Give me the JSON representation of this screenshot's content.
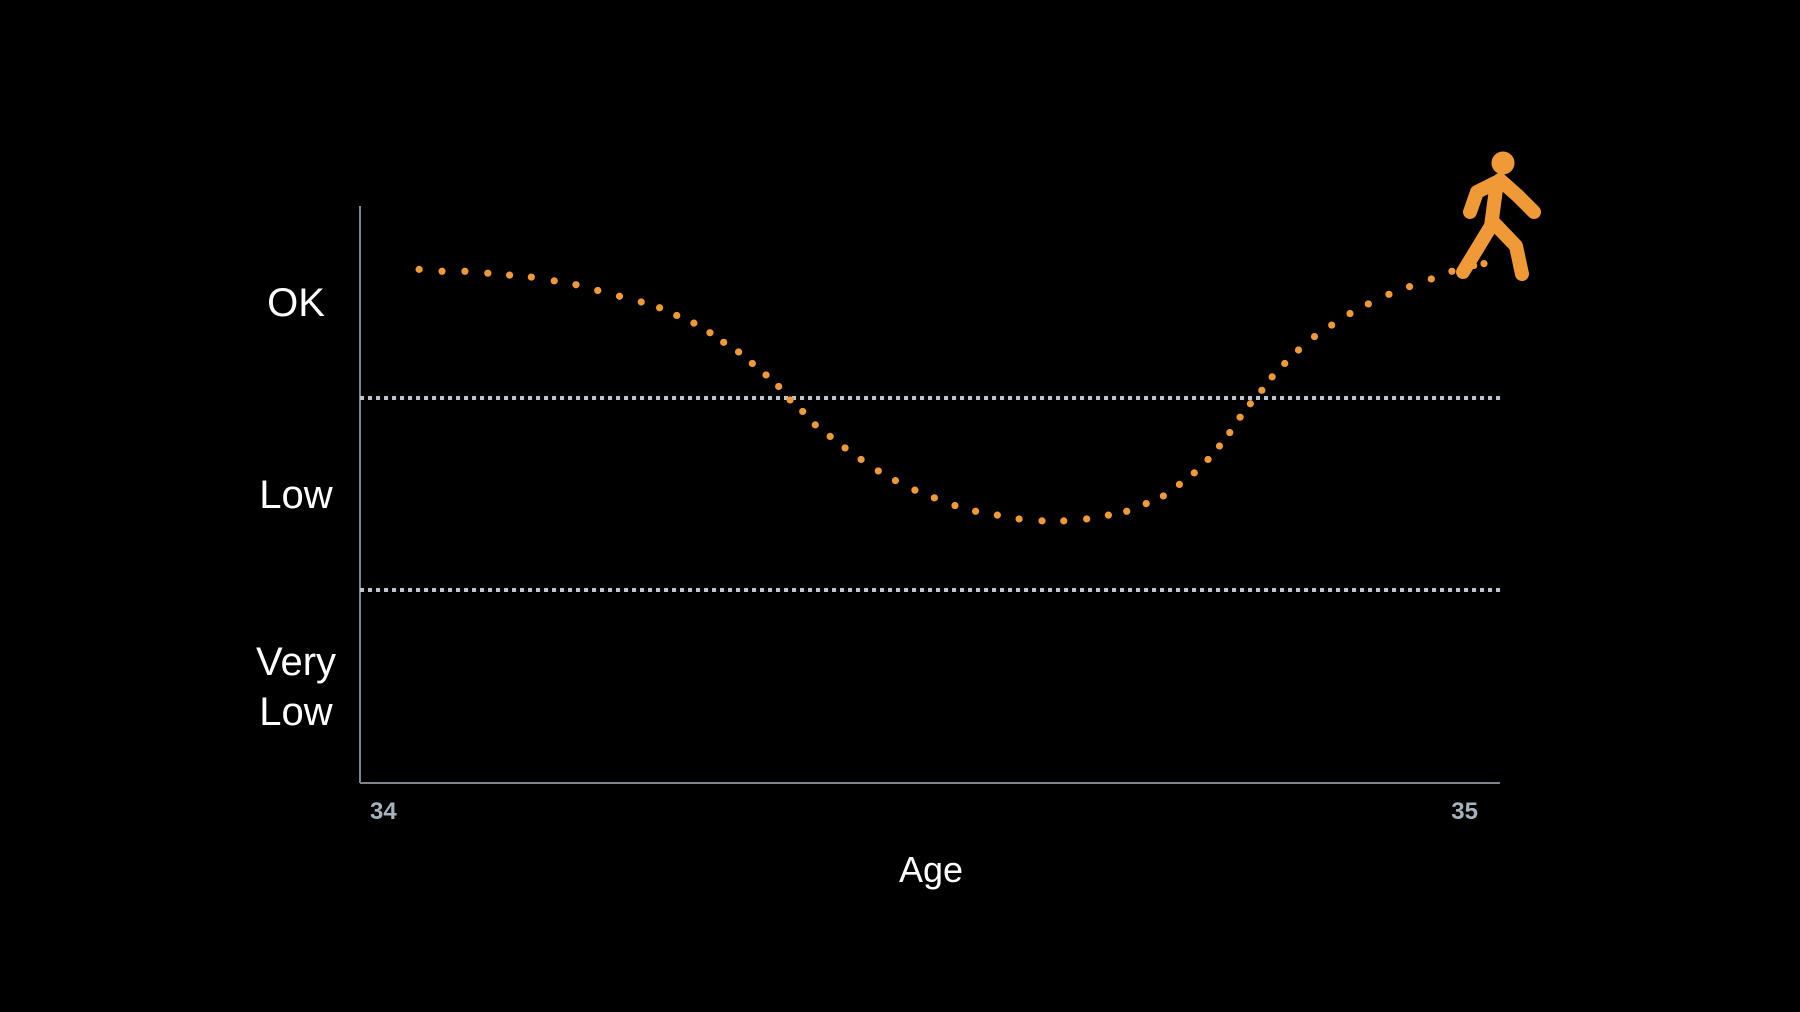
{
  "chart_data": {
    "type": "scatter",
    "title": "",
    "xlabel": "Age",
    "ylabel": "",
    "xlim": [
      34,
      35
    ],
    "ylim": [
      0,
      3
    ],
    "x_ticks": [
      {
        "value": 34,
        "label": "34"
      },
      {
        "value": 35,
        "label": "35"
      }
    ],
    "bands": [
      {
        "label": "OK",
        "range": [
          2,
          3
        ]
      },
      {
        "label": "Low",
        "range": [
          1,
          2
        ]
      },
      {
        "label": "Very\nLow",
        "range": [
          0,
          1
        ]
      }
    ],
    "thresholds": [
      2,
      1
    ],
    "grid": false,
    "colors": {
      "series": "#f09a37",
      "threshold": "#b8c4cf",
      "axis": "#7d8590",
      "text": "#ffffff"
    },
    "marker_icon": "walking-person-icon",
    "series": [
      {
        "values": [
          [
            34.056,
            2.67
          ],
          [
            34.076,
            2.66
          ],
          [
            34.096,
            2.66
          ],
          [
            34.116,
            2.65
          ],
          [
            34.135,
            2.64
          ],
          [
            34.154,
            2.63
          ],
          [
            34.174,
            2.61
          ],
          [
            34.193,
            2.59
          ],
          [
            34.212,
            2.56
          ],
          [
            34.231,
            2.53
          ],
          [
            34.25,
            2.5
          ],
          [
            34.266,
            2.47
          ],
          [
            34.281,
            2.43
          ],
          [
            34.296,
            2.39
          ],
          [
            34.31,
            2.34
          ],
          [
            34.322,
            2.29
          ],
          [
            34.335,
            2.24
          ],
          [
            34.347,
            2.18
          ],
          [
            34.359,
            2.12
          ],
          [
            34.37,
            2.06
          ],
          [
            34.38,
            1.99
          ],
          [
            34.391,
            1.93
          ],
          [
            34.402,
            1.86
          ],
          [
            34.415,
            1.8
          ],
          [
            34.428,
            1.74
          ],
          [
            34.442,
            1.68
          ],
          [
            34.457,
            1.62
          ],
          [
            34.472,
            1.57
          ],
          [
            34.489,
            1.52
          ],
          [
            34.506,
            1.48
          ],
          [
            34.524,
            1.44
          ],
          [
            34.542,
            1.41
          ],
          [
            34.561,
            1.39
          ],
          [
            34.58,
            1.37
          ],
          [
            34.6,
            1.36
          ],
          [
            34.619,
            1.36
          ],
          [
            34.639,
            1.37
          ],
          [
            34.658,
            1.39
          ],
          [
            34.674,
            1.41
          ],
          [
            34.691,
            1.45
          ],
          [
            34.706,
            1.49
          ],
          [
            34.72,
            1.55
          ],
          [
            34.733,
            1.61
          ],
          [
            34.745,
            1.68
          ],
          [
            34.755,
            1.75
          ],
          [
            34.764,
            1.82
          ],
          [
            34.773,
            1.9
          ],
          [
            34.782,
            1.97
          ],
          [
            34.792,
            2.04
          ],
          [
            34.801,
            2.11
          ],
          [
            34.812,
            2.18
          ],
          [
            34.824,
            2.25
          ],
          [
            34.838,
            2.32
          ],
          [
            34.853,
            2.38
          ],
          [
            34.869,
            2.44
          ],
          [
            34.885,
            2.49
          ],
          [
            34.903,
            2.54
          ],
          [
            34.921,
            2.58
          ],
          [
            34.94,
            2.62
          ],
          [
            34.958,
            2.66
          ],
          [
            34.977,
            2.69
          ],
          [
            34.986,
            2.7
          ]
        ]
      }
    ]
  }
}
